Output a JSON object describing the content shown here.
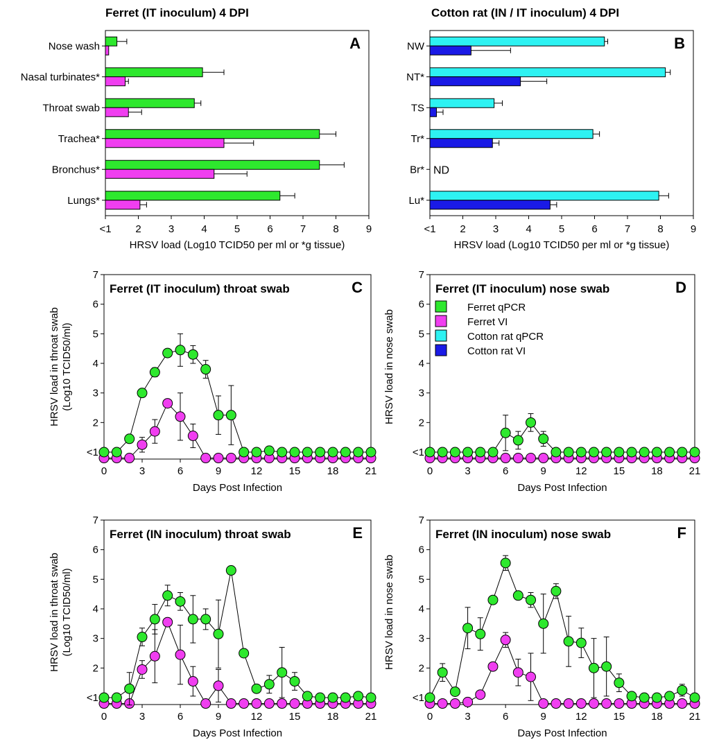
{
  "colors": {
    "ferret_qpcr": "#2ee82e",
    "ferret_vi": "#f03ef0",
    "cotton_qpcr": "#2ef2f2",
    "cotton_vi": "#1a1ae6",
    "axis": "#000000"
  },
  "legend": {
    "entries": [
      {
        "label": "Ferret qPCR",
        "color": "#2ee82e"
      },
      {
        "label": "Ferret VI",
        "color": "#f03ef0"
      },
      {
        "label": "Cotton rat qPCR",
        "color": "#2ef2f2"
      },
      {
        "label": "Cotton rat VI",
        "color": "#1a1ae6"
      }
    ]
  },
  "chart_data": [
    {
      "id": "A",
      "panel_letter": "A",
      "type": "bar",
      "orientation": "horizontal",
      "title": "Ferret (IT inoculum) 4 DPI",
      "xlabel": "HRSV load (Log10 TCID50 per ml or *g tissue)",
      "xlim": [
        1,
        9
      ],
      "xticks": [
        "<1",
        "2",
        "3",
        "4",
        "5",
        "6",
        "7",
        "8",
        "9"
      ],
      "categories": [
        "Nose wash",
        "Nasal turbinates*",
        "Throat swab",
        "Trachea*",
        "Bronchus*",
        "Lungs*"
      ],
      "series": [
        {
          "key": "ferret_qpcr",
          "values": [
            1.35,
            3.95,
            3.7,
            7.5,
            7.5,
            6.3
          ],
          "errors": [
            0.3,
            0.65,
            0.2,
            0.5,
            0.75,
            0.45
          ]
        },
        {
          "key": "ferret_vi",
          "values": [
            1.1,
            1.6,
            1.7,
            4.6,
            4.3,
            2.05
          ],
          "errors": [
            0.0,
            0.1,
            0.4,
            0.9,
            1.0,
            0.2
          ]
        }
      ],
      "annotations": []
    },
    {
      "id": "B",
      "panel_letter": "B",
      "type": "bar",
      "orientation": "horizontal",
      "title": "Cotton rat (IN / IT inoculum) 4 DPI",
      "xlabel": "HRSV load (Log10 TCID50 per ml or *g tissue)",
      "xlim": [
        1,
        9
      ],
      "xticks": [
        "<1",
        "2",
        "3",
        "4",
        "5",
        "6",
        "7",
        "8",
        "9"
      ],
      "categories": [
        "NW",
        "NT*",
        "TS",
        "Tr*",
        "Br*",
        "Lu*"
      ],
      "series": [
        {
          "key": "cotton_qpcr",
          "values": [
            6.3,
            8.15,
            2.95,
            5.95,
            null,
            7.95
          ],
          "errors": [
            0.1,
            0.15,
            0.25,
            0.2,
            null,
            0.3
          ]
        },
        {
          "key": "cotton_vi",
          "values": [
            2.25,
            3.75,
            1.2,
            2.9,
            null,
            4.65
          ],
          "errors": [
            1.2,
            0.8,
            0.2,
            0.2,
            null,
            0.2
          ]
        }
      ],
      "annotations": [
        {
          "category": "Br*",
          "text": "ND"
        }
      ]
    },
    {
      "id": "C",
      "panel_letter": "C",
      "type": "line",
      "title": "Ferret (IT inoculum) throat swab",
      "xlabel": "Days Post Infection",
      "ylabel": [
        "HRSV load in throat swab",
        "(Log10 TCID50/ml)"
      ],
      "xlim": [
        0,
        21
      ],
      "ylim": [
        1,
        7
      ],
      "xticks": [
        0,
        3,
        6,
        9,
        12,
        15,
        18,
        21
      ],
      "yticks": [
        "<1",
        "2",
        "3",
        "4",
        "5",
        "6",
        "7"
      ],
      "legend": false,
      "series": [
        {
          "key": "ferret_qpcr",
          "x": [
            0,
            1,
            2,
            3,
            4,
            5,
            6,
            7,
            8,
            9,
            10,
            11,
            12,
            13,
            14,
            15,
            16,
            17,
            18,
            19,
            20,
            21
          ],
          "y": [
            1,
            1,
            1.45,
            3.0,
            3.7,
            4.35,
            4.45,
            4.3,
            3.8,
            2.25,
            2.25,
            1,
            1,
            1.05,
            1,
            1,
            1,
            1,
            1,
            1,
            1,
            1
          ],
          "err": [
            0,
            0,
            0,
            0,
            0.15,
            0,
            0.55,
            0.3,
            0.3,
            0.65,
            1.0,
            0,
            0,
            0,
            0,
            0,
            0,
            0,
            0,
            0,
            0,
            0
          ]
        },
        {
          "key": "ferret_vi",
          "x": [
            0,
            1,
            2,
            3,
            4,
            5,
            6,
            7,
            8,
            9,
            10,
            11,
            12,
            13,
            14,
            15,
            16,
            17,
            18,
            19,
            20,
            21
          ],
          "y": [
            0.8,
            0.8,
            0.8,
            1.25,
            1.7,
            2.65,
            2.2,
            1.55,
            0.8,
            0.8,
            0.8,
            0.8,
            0.8,
            0.8,
            0.8,
            0.8,
            0.8,
            0.8,
            0.8,
            0.8,
            0.8,
            0.8
          ],
          "err": [
            0,
            0,
            0,
            0.25,
            0.4,
            0,
            0.8,
            0.4,
            0,
            0,
            0,
            0,
            0,
            0,
            0,
            0,
            0,
            0,
            0,
            0,
            0,
            0
          ]
        }
      ]
    },
    {
      "id": "D",
      "panel_letter": "D",
      "type": "line",
      "title": "Ferret (IT inoculum) nose swab",
      "xlabel": "Days Post Infection",
      "ylabel": [
        "HRSV load in nose swab"
      ],
      "xlim": [
        0,
        21
      ],
      "ylim": [
        1,
        7
      ],
      "xticks": [
        0,
        3,
        6,
        9,
        12,
        15,
        18,
        21
      ],
      "yticks": [
        "<1",
        "2",
        "3",
        "4",
        "5",
        "6",
        "7"
      ],
      "legend": true,
      "series": [
        {
          "key": "ferret_qpcr",
          "x": [
            0,
            1,
            2,
            3,
            4,
            5,
            6,
            7,
            8,
            9,
            10,
            11,
            12,
            13,
            14,
            15,
            16,
            17,
            18,
            19,
            20,
            21
          ],
          "y": [
            1,
            1,
            1,
            1,
            1,
            1,
            1.65,
            1.4,
            2.0,
            1.45,
            1,
            1,
            1,
            1,
            1,
            1,
            1,
            1,
            1,
            1,
            1,
            1
          ],
          "err": [
            0,
            0,
            0,
            0,
            0,
            0,
            0.6,
            0.3,
            0.3,
            0.25,
            0,
            0,
            0,
            0,
            0,
            0,
            0,
            0,
            0,
            0,
            0,
            0
          ]
        },
        {
          "key": "ferret_vi",
          "x": [
            0,
            1,
            2,
            3,
            4,
            5,
            6,
            7,
            8,
            9,
            10,
            11,
            12,
            13,
            14,
            15,
            16,
            17,
            18,
            19,
            20,
            21
          ],
          "y": [
            0.8,
            0.8,
            0.8,
            0.8,
            0.8,
            0.8,
            0.8,
            0.8,
            0.8,
            0.8,
            0.8,
            0.8,
            0.8,
            0.8,
            0.8,
            0.8,
            0.8,
            0.8,
            0.8,
            0.8,
            0.8,
            0.8
          ],
          "err": [
            0,
            0,
            0,
            0,
            0,
            0,
            0,
            0,
            0,
            0,
            0,
            0,
            0,
            0,
            0,
            0,
            0,
            0,
            0,
            0,
            0,
            0
          ]
        }
      ]
    },
    {
      "id": "E",
      "panel_letter": "E",
      "type": "line",
      "title": "Ferret (IN inoculum) throat swab",
      "xlabel": "Days Post Infection",
      "ylabel": [
        "HRSV load in throat swab",
        "(Log10 TCID50/ml)"
      ],
      "xlim": [
        0,
        21
      ],
      "ylim": [
        1,
        7
      ],
      "xticks": [
        0,
        3,
        6,
        9,
        12,
        15,
        18,
        21
      ],
      "yticks": [
        "<1",
        "2",
        "3",
        "4",
        "5",
        "6",
        "7"
      ],
      "legend": false,
      "series": [
        {
          "key": "ferret_qpcr",
          "x": [
            0,
            1,
            2,
            3,
            4,
            5,
            6,
            7,
            8,
            9,
            10,
            11,
            12,
            13,
            14,
            15,
            16,
            17,
            18,
            19,
            20,
            21
          ],
          "y": [
            1,
            1,
            1.3,
            3.05,
            3.65,
            4.45,
            4.25,
            3.65,
            3.65,
            3.15,
            5.3,
            2.5,
            1.3,
            1.45,
            1.85,
            1.55,
            1.05,
            1,
            1,
            1,
            1.05,
            1
          ],
          "err": [
            0,
            0,
            0.55,
            0.3,
            0.5,
            0.35,
            0.3,
            0.8,
            0.35,
            1.15,
            0,
            0,
            0,
            0.3,
            0.85,
            0.3,
            0,
            0,
            0,
            0,
            0,
            0
          ]
        },
        {
          "key": "ferret_vi",
          "x": [
            0,
            1,
            2,
            3,
            4,
            5,
            6,
            7,
            8,
            9,
            10,
            11,
            12,
            13,
            14,
            15,
            16,
            17,
            18,
            19,
            20,
            21
          ],
          "y": [
            0.8,
            0.8,
            0.8,
            1.95,
            2.4,
            3.55,
            2.45,
            1.55,
            0.8,
            1.4,
            0.8,
            0.8,
            0.8,
            0.8,
            0.8,
            0.8,
            0.8,
            0.8,
            0.8,
            0.8,
            0.8,
            0.8
          ],
          "err": [
            0,
            0,
            0,
            0.3,
            0.9,
            0,
            1.0,
            0.5,
            0,
            0.55,
            0,
            0,
            0,
            0,
            0,
            0,
            0,
            0,
            0,
            0,
            0,
            0
          ]
        }
      ]
    },
    {
      "id": "F",
      "panel_letter": "F",
      "type": "line",
      "title": "Ferret (IN inoculum) nose swab",
      "xlabel": "Days Post Infection",
      "ylabel": [
        "HRSV load in nose swab"
      ],
      "xlim": [
        0,
        21
      ],
      "ylim": [
        1,
        7
      ],
      "xticks": [
        0,
        3,
        6,
        9,
        12,
        15,
        18,
        21
      ],
      "yticks": [
        "<1",
        "2",
        "3",
        "4",
        "5",
        "6",
        "7"
      ],
      "legend": false,
      "series": [
        {
          "key": "ferret_qpcr",
          "x": [
            0,
            1,
            2,
            3,
            4,
            5,
            6,
            7,
            8,
            9,
            10,
            11,
            12,
            13,
            14,
            15,
            16,
            17,
            18,
            19,
            20,
            21
          ],
          "y": [
            1,
            1.85,
            1.2,
            3.35,
            3.15,
            4.3,
            5.55,
            4.45,
            4.3,
            3.5,
            4.6,
            2.9,
            2.85,
            2.0,
            2.05,
            1.5,
            1.05,
            1,
            1,
            1.05,
            1.25,
            1
          ],
          "err": [
            0,
            0.3,
            0,
            0.7,
            0.55,
            0,
            0.25,
            0.1,
            0.25,
            1.0,
            0.25,
            0.85,
            0.5,
            1.0,
            1.0,
            0.3,
            0,
            0,
            0,
            0,
            0.2,
            0
          ]
        },
        {
          "key": "ferret_vi",
          "x": [
            0,
            1,
            2,
            3,
            4,
            5,
            6,
            7,
            8,
            9,
            10,
            11,
            12,
            13,
            14,
            15,
            16,
            17,
            18,
            19,
            20,
            21
          ],
          "y": [
            0.8,
            0.8,
            0.8,
            0.85,
            1.1,
            2.05,
            2.95,
            1.85,
            1.7,
            0.8,
            0.8,
            0.8,
            0.8,
            0.8,
            0.8,
            0.8,
            0.8,
            0.8,
            0.8,
            0.8,
            0.8,
            0.8
          ],
          "err": [
            0,
            0,
            0,
            0,
            0,
            0,
            0.25,
            0.45,
            0.8,
            0,
            0,
            0,
            0,
            0,
            0,
            0,
            0,
            0,
            0,
            0,
            0,
            0
          ]
        }
      ]
    }
  ]
}
